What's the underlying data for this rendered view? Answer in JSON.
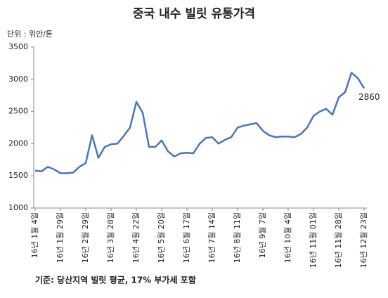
{
  "chart_data": {
    "type": "line",
    "title": "중국 내수 빌릿 유통가격",
    "unit_label": "단위 : 위안/톤",
    "footnote": "기준: 당산지역 빌릿 평균, 17% 부가세 포함",
    "categories": [
      "16년 1월 4일",
      null,
      null,
      null,
      "16년 1월 29일",
      null,
      null,
      null,
      "16년 2월 29일",
      null,
      null,
      null,
      "16년 3월 28일",
      null,
      null,
      null,
      "16년 4월 22일",
      null,
      null,
      null,
      "16년 5월 20일",
      null,
      null,
      null,
      "16년 6월 17일",
      null,
      null,
      null,
      "16년 7월 14일",
      null,
      null,
      null,
      "16년 8월 11일",
      null,
      null,
      null,
      "16년 9월 7일",
      null,
      null,
      null,
      "16년 10월 4일",
      null,
      null,
      null,
      "16년 11월 01일",
      null,
      null,
      null,
      "16년 11월 28일",
      null,
      null,
      null,
      "16년 12월 23일"
    ],
    "values": [
      1580,
      1570,
      1640,
      1600,
      1540,
      1540,
      1550,
      1640,
      1700,
      2130,
      1780,
      1950,
      1990,
      2000,
      2120,
      2250,
      2650,
      2480,
      1950,
      1950,
      2050,
      1880,
      1800,
      1850,
      1860,
      1850,
      2000,
      2090,
      2100,
      2000,
      2060,
      2100,
      2250,
      2280,
      2300,
      2320,
      2200,
      2130,
      2100,
      2110,
      2110,
      2100,
      2150,
      2250,
      2430,
      2500,
      2540,
      2450,
      2720,
      2800,
      3100,
      3020,
      2860
    ],
    "color": "#4a76b5",
    "ylim": [
      1000,
      3500
    ],
    "yticks": [
      1000,
      1500,
      2000,
      2500,
      3000,
      3500
    ],
    "grid": false
  }
}
